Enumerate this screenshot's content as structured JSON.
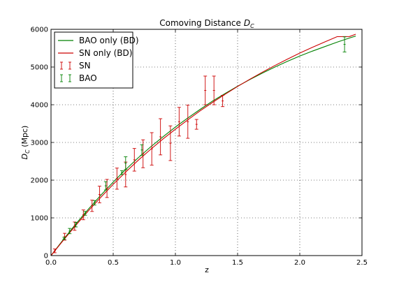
{
  "chart_data": {
    "type": "line",
    "title": "Comoving Distance",
    "title_symbol": "D",
    "title_subscript": "C",
    "xlabel": "z",
    "ylabel": "D",
    "ylabel_subscript": "C",
    "ylabel_suffix": " (Mpc)",
    "xlim": [
      0.0,
      2.5
    ],
    "ylim": [
      0,
      6000
    ],
    "xticks": [
      0.0,
      0.5,
      1.0,
      1.5,
      2.0,
      2.5
    ],
    "xtick_labels": [
      "0.0",
      "0.5",
      "1.0",
      "1.5",
      "2.0",
      "2.5"
    ],
    "yticks": [
      0,
      1000,
      2000,
      3000,
      4000,
      5000,
      6000
    ],
    "ytick_labels": [
      "0",
      "1000",
      "2000",
      "3000",
      "4000",
      "5000",
      "6000"
    ],
    "grid": true,
    "legend_position": "top-left",
    "legend": [
      {
        "label": "BAO only (BD)",
        "kind": "line",
        "color": "#008000"
      },
      {
        "label": "SN only (BD)",
        "kind": "line",
        "color": "#cc0000"
      },
      {
        "label": "SN",
        "kind": "errorbar",
        "color": "#cc0000"
      },
      {
        "label": "BAO",
        "kind": "errorbar",
        "color": "#008000"
      }
    ],
    "series": [
      {
        "name": "BAO only (BD)",
        "kind": "line",
        "color": "#008000",
        "x": [
          0.0,
          0.1,
          0.2,
          0.3,
          0.4,
          0.5,
          0.6,
          0.7,
          0.8,
          0.9,
          1.0,
          1.1,
          1.2,
          1.3,
          1.4,
          1.5,
          1.6,
          1.7,
          1.8,
          1.9,
          2.0,
          2.1,
          2.2,
          2.3,
          2.4,
          2.45
        ],
        "y": [
          0,
          430,
          840,
          1230,
          1600,
          1950,
          2280,
          2590,
          2880,
          3150,
          3410,
          3650,
          3880,
          4100,
          4300,
          4490,
          4670,
          4840,
          5000,
          5150,
          5290,
          5420,
          5540,
          5660,
          5770,
          5820
        ]
      },
      {
        "name": "SN only (BD)",
        "kind": "line",
        "color": "#cc0000",
        "x": [
          0.0,
          0.1,
          0.2,
          0.3,
          0.4,
          0.5,
          0.6,
          0.7,
          0.8,
          0.9,
          1.0,
          1.1,
          1.2,
          1.3,
          1.4,
          1.5,
          1.6,
          1.7,
          1.8,
          1.9,
          2.0,
          2.1,
          2.2,
          2.3,
          2.4,
          2.45
        ],
        "y": [
          0,
          410,
          805,
          1185,
          1545,
          1890,
          2215,
          2525,
          2815,
          3090,
          3350,
          3600,
          3840,
          4065,
          4280,
          4485,
          4680,
          4865,
          5040,
          5210,
          5370,
          5520,
          5665,
          5805,
          5810,
          5870
        ]
      },
      {
        "name": "SN",
        "kind": "errorbar",
        "color": "#cc0000",
        "points": [
          {
            "x": 0.03,
            "y": 125,
            "err": 50
          },
          {
            "x": 0.11,
            "y": 500,
            "err": 90
          },
          {
            "x": 0.19,
            "y": 780,
            "err": 110
          },
          {
            "x": 0.26,
            "y": 1080,
            "err": 130
          },
          {
            "x": 0.33,
            "y": 1320,
            "err": 150
          },
          {
            "x": 0.39,
            "y": 1620,
            "err": 220
          },
          {
            "x": 0.45,
            "y": 1780,
            "err": 240
          },
          {
            "x": 0.53,
            "y": 2040,
            "err": 280
          },
          {
            "x": 0.6,
            "y": 2150,
            "err": 330
          },
          {
            "x": 0.67,
            "y": 2540,
            "err": 300
          },
          {
            "x": 0.74,
            "y": 2700,
            "err": 370
          },
          {
            "x": 0.81,
            "y": 2830,
            "err": 430
          },
          {
            "x": 0.88,
            "y": 3150,
            "err": 480
          },
          {
            "x": 0.96,
            "y": 2980,
            "err": 460
          },
          {
            "x": 1.03,
            "y": 3550,
            "err": 380
          },
          {
            "x": 1.1,
            "y": 3550,
            "err": 440
          },
          {
            "x": 1.17,
            "y": 3480,
            "err": 130
          },
          {
            "x": 1.24,
            "y": 4380,
            "err": 380
          },
          {
            "x": 1.31,
            "y": 4380,
            "err": 380
          },
          {
            "x": 1.38,
            "y": 4100,
            "err": 150
          }
        ]
      },
      {
        "name": "BAO",
        "kind": "errorbar",
        "color": "#008000",
        "points": [
          {
            "x": 0.106,
            "y": 456,
            "err": 30
          },
          {
            "x": 0.15,
            "y": 650,
            "err": 70
          },
          {
            "x": 0.2,
            "y": 820,
            "err": 60
          },
          {
            "x": 0.275,
            "y": 1120,
            "err": 50
          },
          {
            "x": 0.35,
            "y": 1400,
            "err": 60
          },
          {
            "x": 0.44,
            "y": 1850,
            "err": 110
          },
          {
            "x": 0.57,
            "y": 2200,
            "err": 50
          },
          {
            "x": 0.6,
            "y": 2450,
            "err": 170
          },
          {
            "x": 0.73,
            "y": 2800,
            "err": 140
          },
          {
            "x": 2.36,
            "y": 5600,
            "err": 200
          }
        ]
      }
    ]
  }
}
